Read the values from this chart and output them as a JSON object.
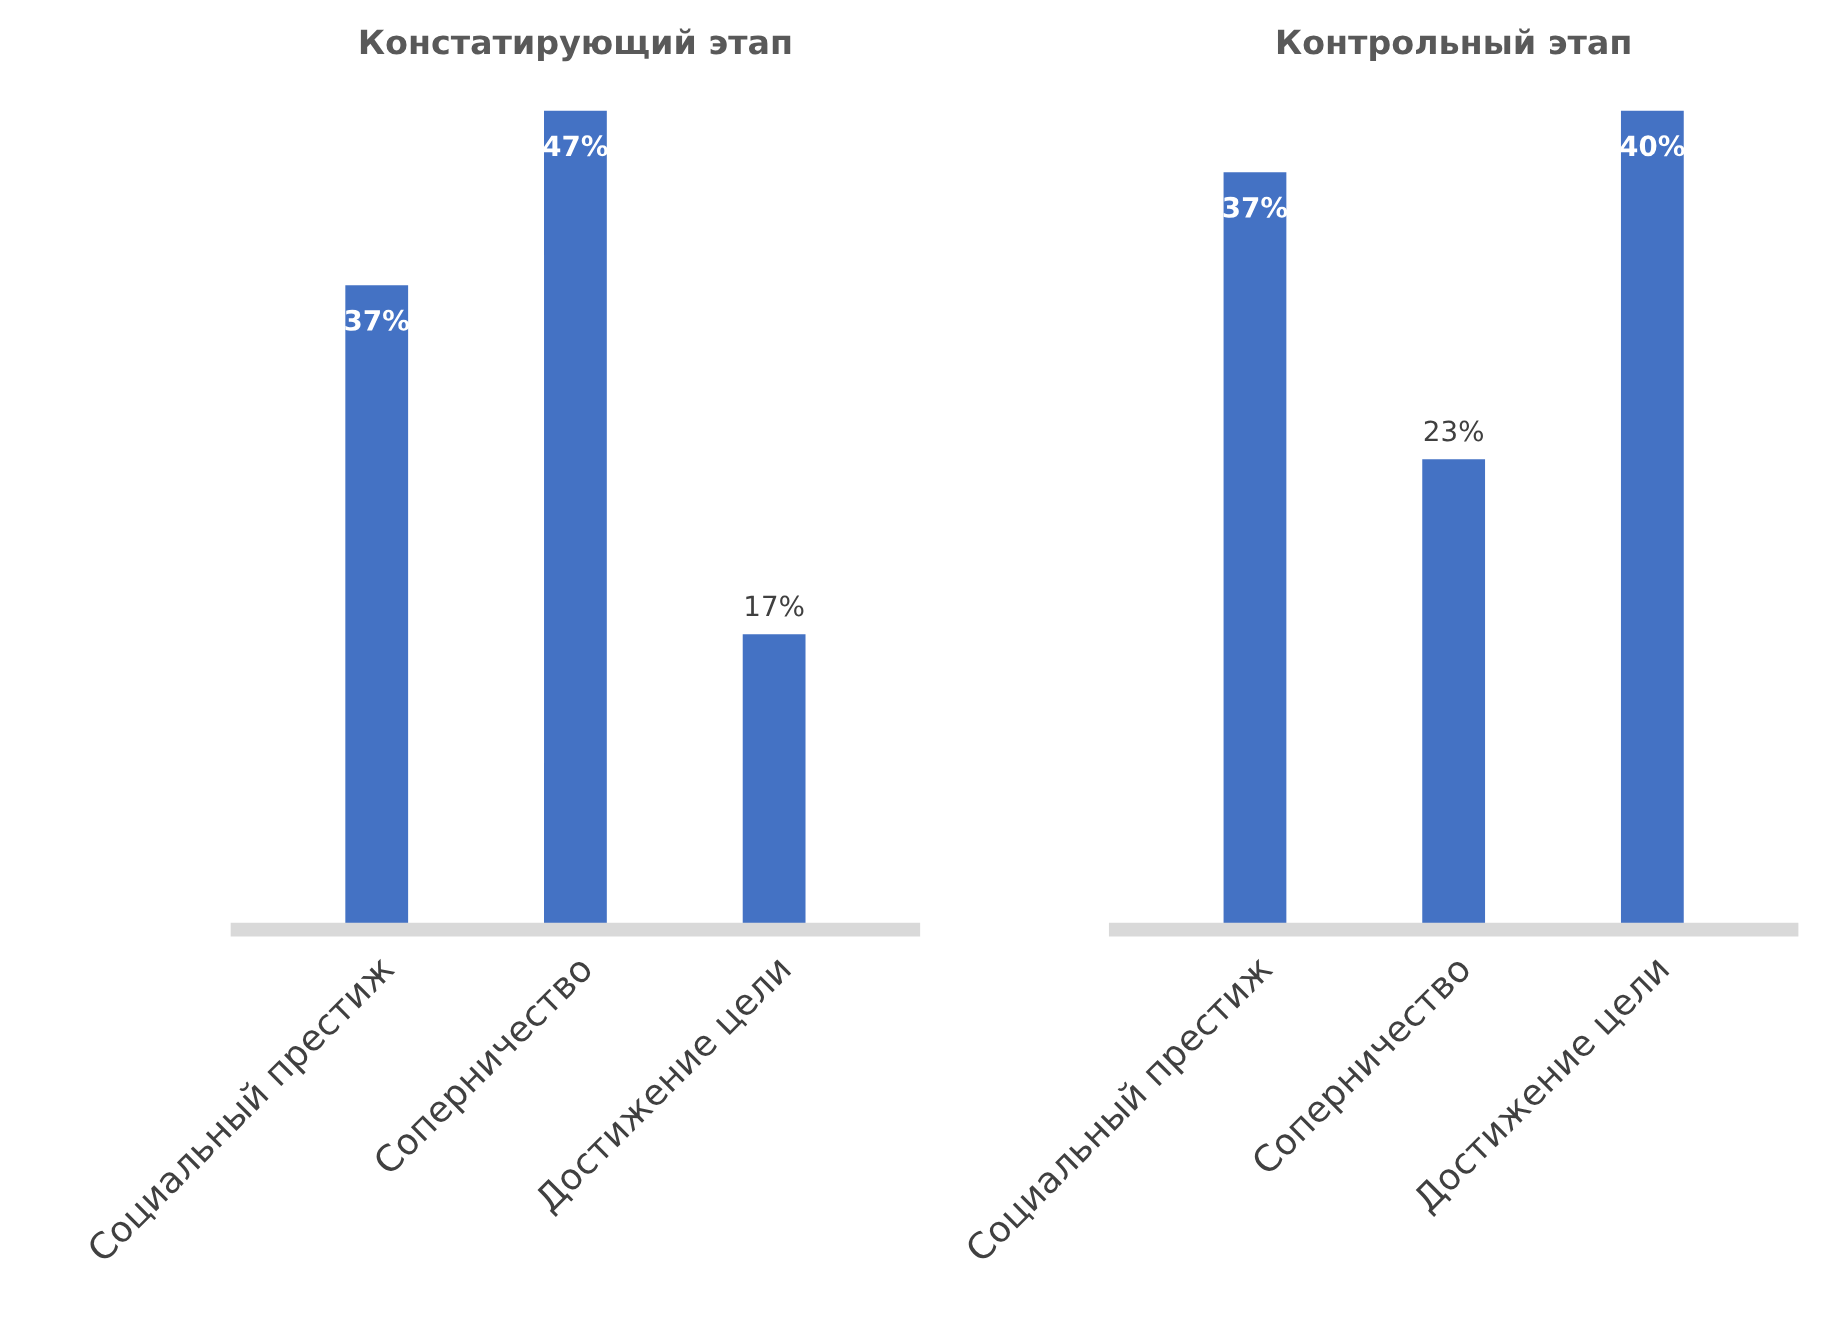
{
  "chart_data": [
    {
      "type": "bar",
      "title": "Констатирующий этап",
      "categories": [
        "Социальный престиж",
        "Соперничество",
        "Достижение цели"
      ],
      "values": [
        37,
        47,
        17
      ],
      "value_labels": [
        "37%",
        "47%",
        "17%"
      ],
      "color": "#4472c4",
      "grid": false
    },
    {
      "type": "bar",
      "title": "Контрольный этап",
      "categories": [
        "Социальный престиж",
        "Соперничество",
        "Достижение цели"
      ],
      "values": [
        37,
        23,
        40
      ],
      "value_labels": [
        "37%",
        "23%",
        "40%"
      ],
      "color": "#4472c4",
      "grid": false
    }
  ]
}
